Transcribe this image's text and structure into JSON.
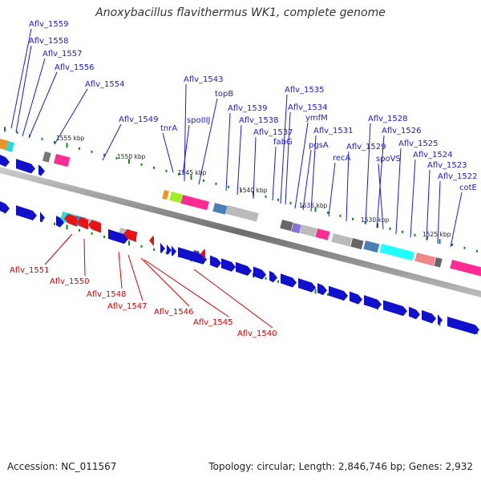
{
  "title": "Anoxybacillus flavithermus WK1, complete genome",
  "accession_label": "Accession: NC_011567",
  "topology_label": "Topology: circular; Length: 2,846,746 bp; Genes: 2,932",
  "colors": {
    "forward_label": "#1a1ad6",
    "reverse_label": "#d60000",
    "forward_gene": "#1111cc",
    "reverse_gene": "#ee1111",
    "backbone": "#888888",
    "tick": "#118811"
  },
  "kbp_labels": [
    "1555 kbp",
    "1550 kbp",
    "1545 kbp",
    "1540 kbp",
    "1535 kbp",
    "1530 kbp",
    "1525 kbp"
  ],
  "forward_genes": [
    "Aflv_1559",
    "Aflv_1558",
    "Aflv_1557",
    "Aflv_1556",
    "Aflv_1554",
    "Aflv_1549",
    "tnrA",
    "spoIIIJ",
    "Aflv_1543",
    "topB",
    "Aflv_1539",
    "Aflv_1538",
    "Aflv_1537",
    "fabG",
    "Aflv_1535",
    "Aflv_1534",
    "ymfM",
    "pgsA",
    "Aflv_1531",
    "recA",
    "Aflv_1529",
    "Aflv_1528",
    "Aflv_1526",
    "spoVS",
    "Aflv_1525",
    "Aflv_1524",
    "Aflv_1523",
    "Aflv_1522",
    "cotE"
  ],
  "reverse_genes": [
    "Aflv_1551",
    "Aflv_1550",
    "Aflv_1548",
    "Aflv_1547",
    "Aflv_1546",
    "Aflv_1545",
    "Aflv_1540"
  ]
}
